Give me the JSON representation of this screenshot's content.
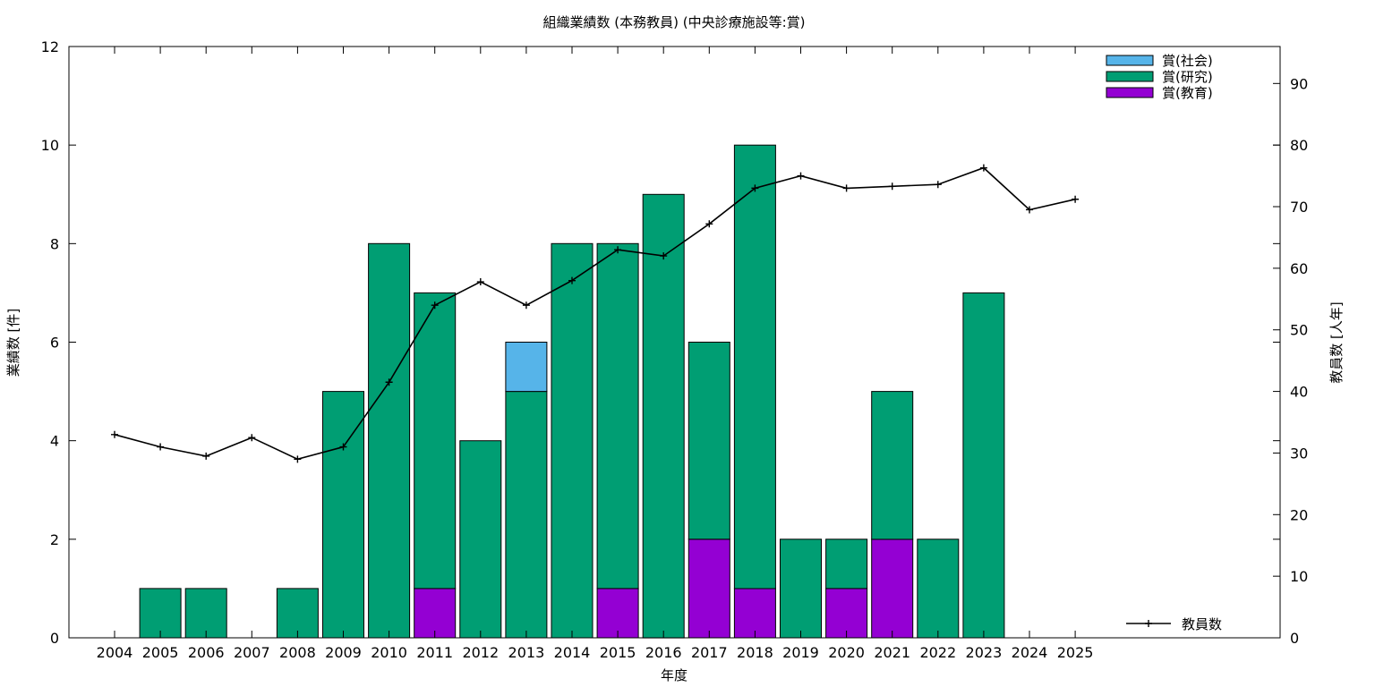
{
  "chart_data": {
    "type": "bar",
    "title": "組織業績数 (本務教員) (中央診療施設等:賞)",
    "xlabel": "年度",
    "ylabel": "業績数 [件]",
    "y2label": "教員数 [人年]",
    "ylim": [
      0,
      12
    ],
    "y2lim": [
      0,
      96
    ],
    "yticks": [
      0,
      2,
      4,
      6,
      8,
      10,
      12
    ],
    "y2ticks": [
      0,
      10,
      20,
      30,
      40,
      50,
      60,
      70,
      80,
      90
    ],
    "categories": [
      "2004",
      "2005",
      "2006",
      "2007",
      "2008",
      "2009",
      "2010",
      "2011",
      "2012",
      "2013",
      "2014",
      "2015",
      "2016",
      "2017",
      "2018",
      "2019",
      "2020",
      "2021",
      "2022",
      "2023",
      "2024",
      "2025"
    ],
    "stacked": true,
    "series": [
      {
        "name": "賞(教育)",
        "color": "#9400d3",
        "values": [
          0,
          0,
          0,
          0,
          0,
          0,
          0,
          1,
          0,
          0,
          0,
          1,
          0,
          2,
          1,
          0,
          1,
          2,
          0,
          0,
          0,
          0
        ]
      },
      {
        "name": "賞(研究)",
        "color": "#009e73",
        "values": [
          0,
          1,
          1,
          0,
          1,
          5,
          8,
          6,
          4,
          5,
          8,
          7,
          9,
          4,
          9,
          2,
          1,
          3,
          2,
          7,
          0,
          0
        ]
      },
      {
        "name": "賞(社会)",
        "color": "#56b4e9",
        "values": [
          0,
          0,
          0,
          0,
          0,
          0,
          0,
          0,
          0,
          1,
          0,
          0,
          0,
          0,
          0,
          0,
          0,
          0,
          0,
          0,
          0,
          0
        ]
      }
    ],
    "legend_order": [
      "賞(社会)",
      "賞(研究)",
      "賞(教育)"
    ],
    "legend_position": "top-right",
    "line_series": {
      "name": "教員数",
      "axis": "right",
      "color": "#000000",
      "values": [
        33,
        31,
        29.5,
        32.5,
        29,
        31,
        41.5,
        54,
        57.8,
        54,
        58,
        63,
        62,
        67.2,
        73,
        75,
        73,
        73.3,
        73.6,
        76.3,
        69.5,
        71.2
      ],
      "legend_position": "bottom-right"
    },
    "grid": false
  }
}
